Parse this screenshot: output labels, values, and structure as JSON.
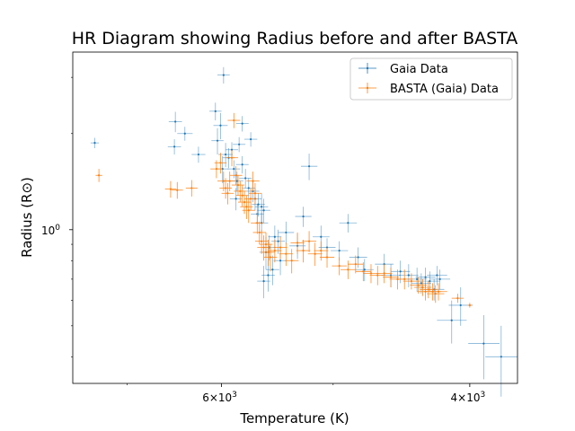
{
  "chart_data": {
    "type": "scatter",
    "title": "HR Diagram showing Radius before and after BASTA",
    "xlabel": "Temperature (K)",
    "ylabel": "Radius (R⊙)",
    "x_scale": "log",
    "y_scale": "log",
    "x_inverted": true,
    "xlim": [
      7650,
      3700
    ],
    "ylim": [
      0.33,
      3.6
    ],
    "x_ticks": [
      {
        "value": 6000,
        "base": "6×10",
        "exp": "3"
      },
      {
        "value": 4000,
        "base": "4×10",
        "exp": "3"
      }
    ],
    "y_ticks": [
      {
        "value": 1.0,
        "label": "10",
        "exp": "0"
      }
    ],
    "grid": false,
    "legend_position": "upper right",
    "series": [
      {
        "name": "Gaia Data",
        "color": "#1f77b4",
        "points": [
          [
            7380,
            1.87,
            50,
            0.07
          ],
          [
            6470,
            2.18,
            70,
            0.16
          ],
          [
            6480,
            1.82,
            70,
            0.1
          ],
          [
            6370,
            2.0,
            80,
            0.1
          ],
          [
            6230,
            1.72,
            70,
            0.1
          ],
          [
            6060,
            2.35,
            60,
            0.15
          ],
          [
            5980,
            3.05,
            60,
            0.18
          ],
          [
            6010,
            2.12,
            70,
            0.2
          ],
          [
            6040,
            1.9,
            60,
            0.18
          ],
          [
            5960,
            1.72,
            70,
            0.15
          ],
          [
            5990,
            1.55,
            60,
            0.15
          ],
          [
            5930,
            1.68,
            60,
            0.12
          ],
          [
            5880,
            1.55,
            60,
            0.1
          ],
          [
            5850,
            1.42,
            60,
            0.1
          ],
          [
            5830,
            1.85,
            60,
            0.1
          ],
          [
            5800,
            1.6,
            60,
            0.1
          ],
          [
            5770,
            1.45,
            60,
            0.1
          ],
          [
            5740,
            1.35,
            60,
            0.1
          ],
          [
            5700,
            1.32,
            60,
            0.1
          ],
          [
            5680,
            1.25,
            60,
            0.1
          ],
          [
            5650,
            1.2,
            60,
            0.1
          ],
          [
            5620,
            1.18,
            60,
            0.12
          ],
          [
            5800,
            2.15,
            60,
            0.12
          ],
          [
            5720,
            1.92,
            60,
            0.1
          ],
          [
            5900,
            1.78,
            60,
            0.1
          ],
          [
            5860,
            1.25,
            60,
            0.1
          ],
          [
            5600,
            1.15,
            60,
            0.1
          ],
          [
            5580,
            0.85,
            60,
            0.1
          ],
          [
            5550,
            0.88,
            60,
            0.08
          ],
          [
            5520,
            0.75,
            60,
            0.08
          ],
          [
            5500,
            0.95,
            60,
            0.08
          ],
          [
            5470,
            0.92,
            60,
            0.08
          ],
          [
            5450,
            0.8,
            60,
            0.08
          ],
          [
            5600,
            0.69,
            60,
            0.08
          ],
          [
            5560,
            0.72,
            60,
            0.08
          ],
          [
            5620,
            1.05,
            60,
            0.08
          ],
          [
            5660,
            1.12,
            60,
            0.08
          ],
          [
            5400,
            0.98,
            70,
            0.08
          ],
          [
            5300,
            0.89,
            70,
            0.08
          ],
          [
            5250,
            1.1,
            70,
            0.08
          ],
          [
            5200,
            1.58,
            70,
            0.15
          ],
          [
            5100,
            0.95,
            70,
            0.08
          ],
          [
            5050,
            0.88,
            70,
            0.06
          ],
          [
            4950,
            0.86,
            70,
            0.06
          ],
          [
            4880,
            1.05,
            70,
            0.07
          ],
          [
            4800,
            0.82,
            70,
            0.06
          ],
          [
            4750,
            0.75,
            70,
            0.06
          ],
          [
            4600,
            0.78,
            70,
            0.06
          ],
          [
            4550,
            0.72,
            70,
            0.06
          ],
          [
            4480,
            0.74,
            70,
            0.06
          ],
          [
            4420,
            0.72,
            70,
            0.06
          ],
          [
            4360,
            0.7,
            70,
            0.06
          ],
          [
            4330,
            0.68,
            70,
            0.05
          ],
          [
            4300,
            0.71,
            70,
            0.05
          ],
          [
            4270,
            0.69,
            70,
            0.05
          ],
          [
            4240,
            0.65,
            70,
            0.05
          ],
          [
            4220,
            0.72,
            70,
            0.05
          ],
          [
            4200,
            0.7,
            70,
            0.05
          ],
          [
            4060,
            0.58,
            80,
            0.08
          ],
          [
            4120,
            0.52,
            100,
            0.08
          ],
          [
            3910,
            0.44,
            100,
            0.1
          ],
          [
            3800,
            0.4,
            100,
            0.1
          ]
        ]
      },
      {
        "name": "BASTA (Gaia) Data",
        "color": "#ff7f0e",
        "points": [
          [
            7330,
            1.48,
            40,
            0.07
          ],
          [
            6520,
            1.34,
            60,
            0.08
          ],
          [
            6450,
            1.33,
            60,
            0.08
          ],
          [
            6300,
            1.35,
            60,
            0.08
          ],
          [
            6050,
            1.55,
            60,
            0.1
          ],
          [
            6010,
            1.62,
            60,
            0.12
          ],
          [
            5980,
            1.42,
            60,
            0.1
          ],
          [
            5960,
            1.35,
            60,
            0.1
          ],
          [
            5940,
            1.3,
            60,
            0.1
          ],
          [
            5920,
            1.42,
            60,
            0.1
          ],
          [
            5900,
            1.68,
            60,
            0.1
          ],
          [
            5880,
            2.2,
            60,
            0.12
          ],
          [
            5860,
            1.48,
            60,
            0.1
          ],
          [
            5840,
            1.38,
            60,
            0.1
          ],
          [
            5820,
            1.32,
            60,
            0.1
          ],
          [
            5800,
            1.28,
            60,
            0.1
          ],
          [
            5780,
            1.22,
            60,
            0.1
          ],
          [
            5760,
            1.18,
            60,
            0.1
          ],
          [
            5740,
            1.15,
            60,
            0.1
          ],
          [
            5720,
            1.25,
            60,
            0.1
          ],
          [
            5700,
            1.42,
            60,
            0.1
          ],
          [
            5680,
            1.3,
            60,
            0.1
          ],
          [
            5660,
            1.05,
            60,
            0.08
          ],
          [
            5640,
            0.98,
            60,
            0.08
          ],
          [
            5620,
            0.92,
            60,
            0.08
          ],
          [
            5600,
            0.88,
            60,
            0.08
          ],
          [
            5580,
            0.9,
            60,
            0.08
          ],
          [
            5560,
            0.85,
            60,
            0.08
          ],
          [
            5540,
            0.82,
            60,
            0.08
          ],
          [
            5500,
            0.86,
            60,
            0.07
          ],
          [
            5450,
            0.88,
            60,
            0.07
          ],
          [
            5400,
            0.84,
            60,
            0.07
          ],
          [
            5350,
            0.8,
            60,
            0.07
          ],
          [
            5300,
            0.91,
            60,
            0.07
          ],
          [
            5250,
            0.86,
            60,
            0.07
          ],
          [
            5200,
            0.92,
            60,
            0.07
          ],
          [
            5150,
            0.84,
            60,
            0.07
          ],
          [
            5100,
            0.86,
            60,
            0.06
          ],
          [
            5050,
            0.82,
            60,
            0.06
          ],
          [
            4950,
            0.77,
            60,
            0.05
          ],
          [
            4880,
            0.75,
            60,
            0.05
          ],
          [
            4820,
            0.78,
            60,
            0.05
          ],
          [
            4760,
            0.74,
            60,
            0.05
          ],
          [
            4700,
            0.73,
            60,
            0.05
          ],
          [
            4650,
            0.72,
            60,
            0.05
          ],
          [
            4600,
            0.73,
            60,
            0.05
          ],
          [
            4550,
            0.71,
            60,
            0.05
          ],
          [
            4500,
            0.7,
            60,
            0.05
          ],
          [
            4450,
            0.7,
            60,
            0.05
          ],
          [
            4400,
            0.69,
            60,
            0.04
          ],
          [
            4350,
            0.67,
            60,
            0.04
          ],
          [
            4320,
            0.66,
            60,
            0.04
          ],
          [
            4300,
            0.64,
            60,
            0.04
          ],
          [
            4280,
            0.65,
            60,
            0.04
          ],
          [
            4250,
            0.64,
            60,
            0.04
          ],
          [
            4230,
            0.63,
            60,
            0.04
          ],
          [
            4210,
            0.64,
            60,
            0.04
          ],
          [
            4080,
            0.61,
            40,
            0.02
          ],
          [
            4000,
            0.58,
            10,
            0.01
          ]
        ]
      }
    ]
  }
}
